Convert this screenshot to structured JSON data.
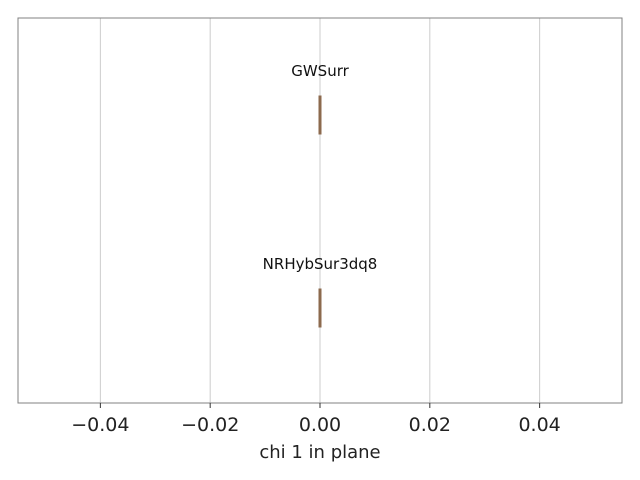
{
  "chart_data": {
    "type": "box",
    "orientation": "horizontal",
    "xlabel": "chi 1 in plane",
    "xlim": [
      -0.055,
      0.055
    ],
    "xticks": [
      -0.04,
      -0.02,
      0.0,
      0.02,
      0.04
    ],
    "xtick_labels": [
      "−0.04",
      "−0.02",
      "0.00",
      "0.02",
      "0.04"
    ],
    "grid": {
      "x": true,
      "y": false
    },
    "series": [
      {
        "name": "GWSurr",
        "q1": 0.0,
        "median": 0.0,
        "q3": 0.0,
        "whisker_low": 0.0,
        "whisker_high": 0.0
      },
      {
        "name": "NRHybSur3dq8",
        "q1": 0.0,
        "median": 0.0,
        "q3": 0.0,
        "whisker_low": 0.0,
        "whisker_high": 0.0
      }
    ],
    "colors": {
      "box_fill": "#c8a07a",
      "box_edge": "#8c6a4e",
      "grid": "#cccccc",
      "frame": "#808080"
    }
  }
}
